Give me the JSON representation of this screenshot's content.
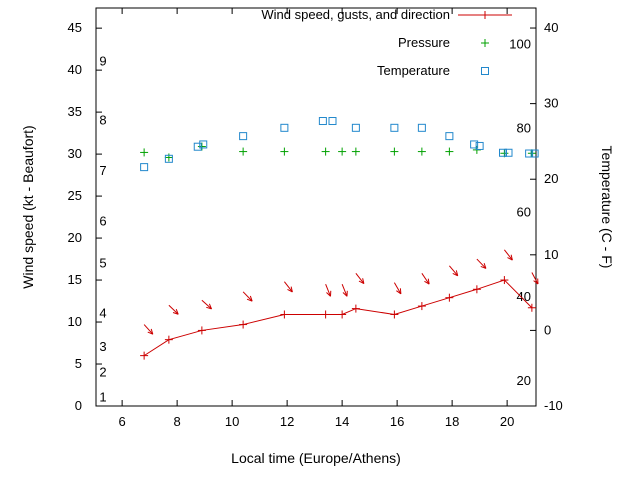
{
  "chart_data": {
    "type": "line",
    "xlabel": "Local time (Europe/Athens)",
    "ylabel_left": "Wind speed (kt - Beaufort)",
    "ylabel_right": "Temperature (C - F)",
    "grid": false,
    "legend_position": "top-right-inside",
    "x_range": [
      5.05,
      21.05
    ],
    "x_ticks": [
      6,
      8,
      10,
      12,
      14,
      16,
      18,
      20
    ],
    "left_axis": {
      "unit": "kt",
      "range": [
        0,
        47.4
      ],
      "ticks": [
        0,
        5,
        10,
        15,
        20,
        25,
        30,
        35,
        40,
        45
      ]
    },
    "right_axis": {
      "unit": "C",
      "range": [
        -10,
        42.65
      ],
      "ticks": [
        -10,
        0,
        10,
        20,
        30,
        40
      ]
    },
    "beaufort_labels": [
      {
        "label": "9",
        "kt": 41
      },
      {
        "label": "8",
        "kt": 34
      },
      {
        "label": "7",
        "kt": 28
      },
      {
        "label": "6",
        "kt": 22
      },
      {
        "label": "5",
        "kt": 17
      },
      {
        "label": "4",
        "kt": 11
      },
      {
        "label": "3",
        "kt": 7
      },
      {
        "label": "2",
        "kt": 4
      },
      {
        "label": "1",
        "kt": 1
      }
    ],
    "fahrenheit_labels": [
      {
        "label": "100",
        "c": 37.8
      },
      {
        "label": "80",
        "c": 26.7
      },
      {
        "label": "60",
        "c": 15.6
      },
      {
        "label": "40",
        "c": 4.4
      },
      {
        "label": "20",
        "c": -6.7
      }
    ],
    "legend": [
      {
        "label": "Wind speed, gusts, and direction",
        "series": "wind"
      },
      {
        "label": "Pressure",
        "series": "pressure"
      },
      {
        "label": "Temperature",
        "series": "temperature"
      }
    ],
    "series": {
      "wind": {
        "color": "#cc0000",
        "style": "linespoints",
        "marker": "plus",
        "axis": "left",
        "x": [
          6.8,
          7.7,
          8.9,
          10.4,
          11.9,
          13.4,
          14.0,
          14.5,
          15.9,
          16.9,
          17.9,
          18.9,
          19.9,
          20.9
        ],
        "y": [
          6.0,
          7.9,
          9.0,
          9.7,
          10.9,
          10.9,
          10.9,
          11.6,
          10.9,
          11.9,
          12.9,
          13.9,
          15.0,
          11.7
        ]
      },
      "gusts": {
        "color": "#cc0000",
        "style": "direction-arrows",
        "axis": "left",
        "x": [
          6.8,
          7.7,
          8.9,
          10.4,
          11.9,
          13.4,
          14.0,
          14.5,
          15.9,
          16.9,
          17.9,
          18.9,
          19.9,
          20.9
        ],
        "y": [
          9.7,
          12.0,
          12.6,
          13.6,
          14.8,
          14.5,
          14.5,
          15.8,
          14.7,
          15.8,
          16.7,
          17.5,
          18.6,
          15.9
        ],
        "arrow_angles_deg": [
          138,
          134,
          132,
          136,
          142,
          158,
          158,
          142,
          150,
          146,
          140,
          136,
          142,
          152
        ]
      },
      "pressure": {
        "color": "#00a000",
        "style": "points",
        "marker": "plus",
        "axis": "left",
        "x": [
          6.8,
          7.7,
          8.9,
          10.4,
          11.9,
          13.4,
          14.0,
          14.5,
          15.9,
          16.9,
          17.9,
          18.9,
          19.9,
          20.9
        ],
        "y": [
          30.2,
          29.6,
          30.9,
          30.3,
          30.3,
          30.3,
          30.3,
          30.3,
          30.3,
          30.3,
          30.3,
          30.5,
          30.1,
          30.1
        ]
      },
      "temperature": {
        "color": "#2288cc",
        "style": "points",
        "marker": "square-open",
        "axis": "right",
        "x": [
          6.8,
          7.7,
          8.75,
          8.95,
          10.4,
          11.9,
          13.3,
          13.65,
          14.5,
          15.9,
          16.9,
          17.9,
          18.8,
          19.0,
          19.85,
          20.05,
          20.8,
          21.0
        ],
        "y": [
          21.6,
          22.7,
          24.3,
          24.6,
          25.7,
          26.8,
          27.7,
          27.7,
          26.8,
          26.8,
          26.8,
          25.7,
          24.6,
          24.4,
          23.5,
          23.5,
          23.4,
          23.4
        ]
      }
    }
  }
}
